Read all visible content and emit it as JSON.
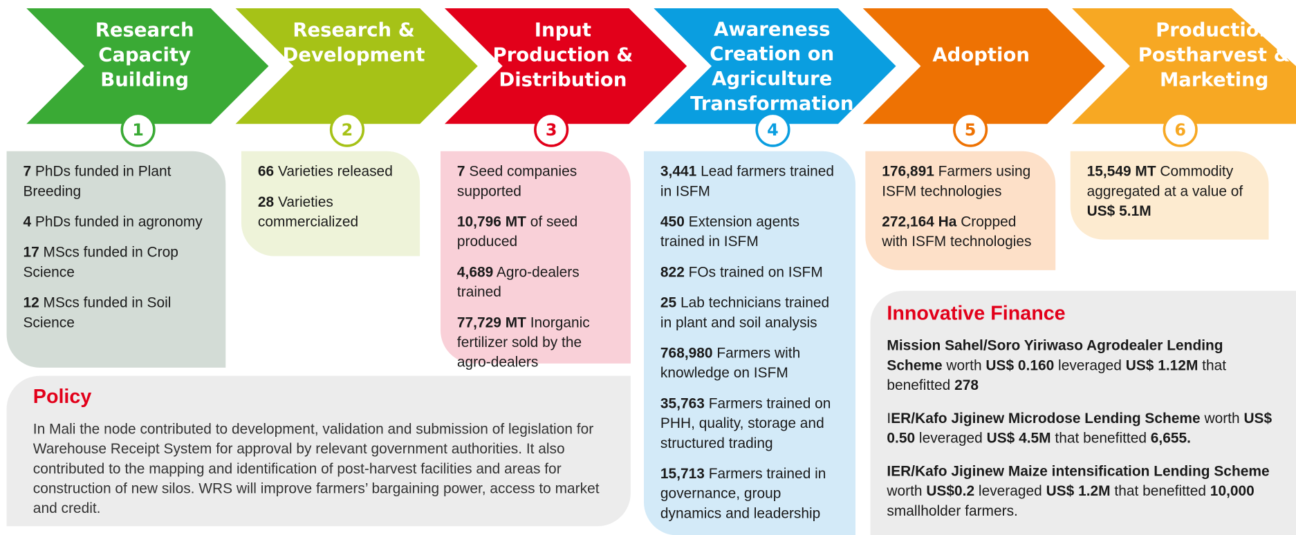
{
  "stages": [
    {
      "title": "Research Capacity Building",
      "number": 1,
      "items": [
        [
          {
            "b": "7"
          },
          {
            "t": " PhDs funded in Plant Breeding"
          }
        ],
        [
          {
            "b": "4"
          },
          {
            "t": " PhDs funded in agronomy"
          }
        ],
        [
          {
            "b": "17"
          },
          {
            "t": " MScs funded in Crop Science"
          }
        ],
        [
          {
            "b": "12"
          },
          {
            "t": " MScs funded in Soil Science"
          }
        ]
      ]
    },
    {
      "title": "Research & Development",
      "number": 2,
      "items": [
        [
          {
            "b": "66"
          },
          {
            "t": " Varieties released"
          }
        ],
        [
          {
            "b": "28"
          },
          {
            "t": " Varieties commercialized"
          }
        ]
      ]
    },
    {
      "title": "Input Production & Distribution",
      "number": 3,
      "items": [
        [
          {
            "b": "7"
          },
          {
            "t": " Seed companies supported"
          }
        ],
        [
          {
            "b": "10,796 MT"
          },
          {
            "t": " of seed produced"
          }
        ],
        [
          {
            "b": "4,689"
          },
          {
            "t": " Agro-dealers trained"
          }
        ],
        [
          {
            "b": "77,729 MT"
          },
          {
            "t": " Inorganic fertilizer sold by the agro-dealers"
          }
        ]
      ]
    },
    {
      "title": "Awareness Creation on Agriculture Transformation",
      "number": 4,
      "items": [
        [
          {
            "b": "3,441"
          },
          {
            "t": " Lead farmers trained in ISFM"
          }
        ],
        [
          {
            "b": "450"
          },
          {
            "t": " Extension agents trained in ISFM"
          }
        ],
        [
          {
            "b": "822"
          },
          {
            "t": " FOs trained on ISFM"
          }
        ],
        [
          {
            "b": "25"
          },
          {
            "t": " Lab technicians trained in plant and soil analysis"
          }
        ],
        [
          {
            "b": "768,980"
          },
          {
            "t": " Farmers with knowledge on ISFM"
          }
        ],
        [
          {
            "b": "35,763"
          },
          {
            "t": " Farmers trained on PHH, quality, storage and structured trading"
          }
        ],
        [
          {
            "b": "15,713"
          },
          {
            "t": " Farmers trained in governance, group dynamics and leadership"
          }
        ]
      ]
    },
    {
      "title": "Adoption",
      "number": 5,
      "items": [
        [
          {
            "b": "176,891"
          },
          {
            "t": " Farmers using ISFM technologies"
          }
        ],
        [
          {
            "b": "272,164 Ha"
          },
          {
            "t": " Cropped with ISFM technologies"
          }
        ]
      ]
    },
    {
      "title": "Production Postharvest & Marketing",
      "number": 6,
      "items": [
        [
          {
            "b": "15,549 MT"
          },
          {
            "t": " Commodity aggregated at a value of "
          },
          {
            "b": "US$ 5.1M"
          }
        ]
      ]
    }
  ],
  "policy": {
    "title": "Policy",
    "text": "In Mali the node contributed to development, validation and submission of legislation for Warehouse Receipt System for approval by relevant government authorities.  It also contributed to the mapping and identification of post-harvest facilities and areas for construction of new silos. WRS will improve farmers’ bargaining power, access to market and credit."
  },
  "finance": {
    "title": "Innovative Finance",
    "items": [
      [
        {
          "b": "Mission Sahel/Soro Yiriwaso Agrodealer Lending Scheme"
        },
        {
          "t": " worth "
        },
        {
          "b": "US$ 0.160"
        },
        {
          "t": " leveraged "
        },
        {
          "b": "US$ 1.12M"
        },
        {
          "t": " that benefitted "
        },
        {
          "b": "278"
        }
      ],
      [
        {
          "t": "I"
        },
        {
          "b": "ER/Kafo Jiginew Microdose Lending Scheme"
        },
        {
          "t": " worth "
        },
        {
          "b": "US$ 0.50"
        },
        {
          "t": " leveraged "
        },
        {
          "b": "US$ 4.5M"
        },
        {
          "t": " that benefitted "
        },
        {
          "b": "6,655."
        }
      ],
      [
        {
          "b": "IER/Kafo Jiginew Maize intensification Lending Scheme"
        },
        {
          "t": " worth "
        },
        {
          "b": "US$0.2"
        },
        {
          "t": " leveraged "
        },
        {
          "b": "US$ 1.2M"
        },
        {
          "t": " that benefitted "
        },
        {
          "b": "10,000"
        },
        {
          "t": " smallholder farmers."
        }
      ]
    ]
  }
}
